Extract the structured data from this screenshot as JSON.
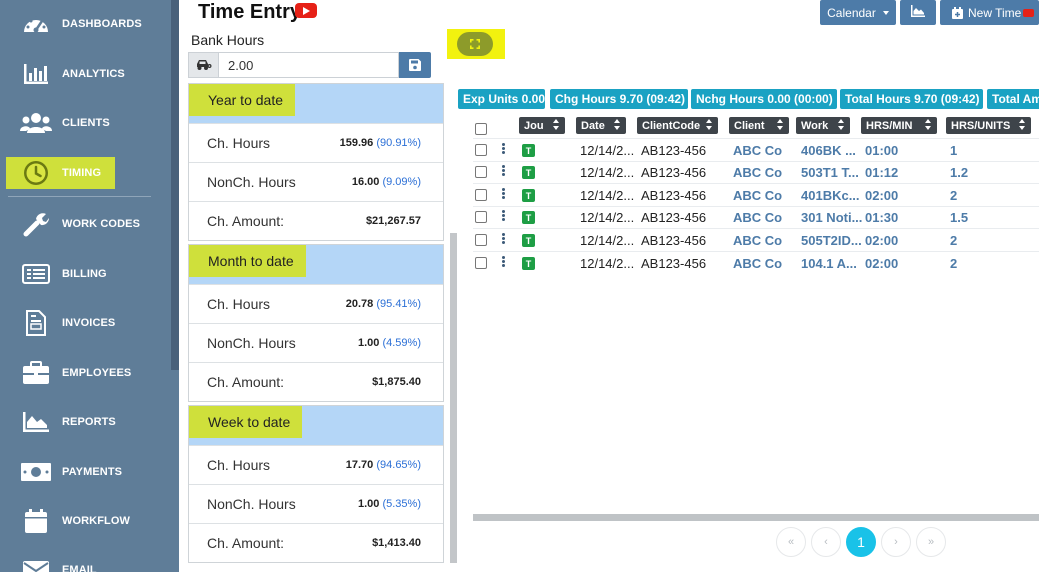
{
  "sidebar": {
    "items": [
      {
        "label": "DASHBOARDS",
        "icon": "gauge-icon"
      },
      {
        "label": "ANALYTICS",
        "icon": "bar-chart-icon"
      },
      {
        "label": "CLIENTS",
        "icon": "users-icon"
      },
      {
        "label": "TIMING",
        "icon": "clock-icon",
        "active": true
      },
      {
        "label": "WORK CODES",
        "icon": "wrench-icon"
      },
      {
        "label": "BILLING",
        "icon": "billing-list-icon"
      },
      {
        "label": "INVOICES",
        "icon": "invoice-icon"
      },
      {
        "label": "EMPLOYEES",
        "icon": "briefcase-icon"
      },
      {
        "label": "REPORTS",
        "icon": "area-chart-icon"
      },
      {
        "label": "PAYMENTS",
        "icon": "money-icon"
      },
      {
        "label": "WORKFLOW",
        "icon": "calendar-icon"
      },
      {
        "label": "EMAIL",
        "icon": "envelope-icon"
      }
    ]
  },
  "header": {
    "title": "Time Entry",
    "calendar_label": "Calendar",
    "new_time_label": "New Time"
  },
  "bank": {
    "label": "Bank Hours",
    "value": "2.00"
  },
  "panels": [
    {
      "title": "Year to date",
      "rows": [
        {
          "label": "Ch. Hours",
          "value": "159.96",
          "pct": "(90.91%)"
        },
        {
          "label": "NonCh. Hours",
          "value": "16.00",
          "pct": "(9.09%)"
        },
        {
          "label": "Ch. Amount:",
          "value": "$21,267.57",
          "pct": ""
        }
      ]
    },
    {
      "title": "Month to date",
      "rows": [
        {
          "label": "Ch. Hours",
          "value": "20.78",
          "pct": "(95.41%)"
        },
        {
          "label": "NonCh. Hours",
          "value": "1.00",
          "pct": "(4.59%)"
        },
        {
          "label": "Ch. Amount:",
          "value": "$1,875.40",
          "pct": ""
        }
      ]
    },
    {
      "title": "Week to date",
      "rows": [
        {
          "label": "Ch. Hours",
          "value": "17.70",
          "pct": "(94.65%)"
        },
        {
          "label": "NonCh. Hours",
          "value": "1.00",
          "pct": "(5.35%)"
        },
        {
          "label": "Ch. Amount:",
          "value": "$1,413.40",
          "pct": ""
        }
      ]
    }
  ],
  "badges": [
    "Exp Units 0.00",
    "Chg Hours 9.70 (09:42)",
    "Nchg Hours 0.00 (00:00)",
    "Total Hours 9.70 (09:42)",
    "Total Am"
  ],
  "table": {
    "columns": [
      "Jou",
      "Date",
      "ClientCode",
      "Client",
      "Work",
      "HRS/MIN",
      "HRS/UNITS"
    ],
    "rows": [
      {
        "type": "T",
        "date": "12/14/2...",
        "client_code": "AB123-456",
        "client": "ABC Co",
        "work": "406BK ...",
        "hrs_min": "01:00",
        "hrs_units": "1"
      },
      {
        "type": "T",
        "date": "12/14/2...",
        "client_code": "AB123-456",
        "client": "ABC Co",
        "work": "503T1 T...",
        "hrs_min": "01:12",
        "hrs_units": "1.2"
      },
      {
        "type": "T",
        "date": "12/14/2...",
        "client_code": "AB123-456",
        "client": "ABC Co",
        "work": "401BKc...",
        "hrs_min": "02:00",
        "hrs_units": "2"
      },
      {
        "type": "T",
        "date": "12/14/2...",
        "client_code": "AB123-456",
        "client": "ABC Co",
        "work": "301 Noti...",
        "hrs_min": "01:30",
        "hrs_units": "1.5"
      },
      {
        "type": "T",
        "date": "12/14/2...",
        "client_code": "AB123-456",
        "client": "ABC Co",
        "work": "505T2ID...",
        "hrs_min": "02:00",
        "hrs_units": "2"
      },
      {
        "type": "T",
        "date": "12/14/2...",
        "client_code": "AB123-456",
        "client": "ABC Co",
        "work": "104.1 A...",
        "hrs_min": "02:00",
        "hrs_units": "2"
      }
    ]
  },
  "pagination": {
    "first": "«",
    "prev": "‹",
    "current": "1",
    "next": "›",
    "last": "»"
  },
  "colors": {
    "sidebar": "#5f7d98",
    "highlight": "#cfe03b",
    "badge": "#1aa2c3",
    "primary": "#4d7ba8",
    "panel_header": "#b4d6f7"
  }
}
